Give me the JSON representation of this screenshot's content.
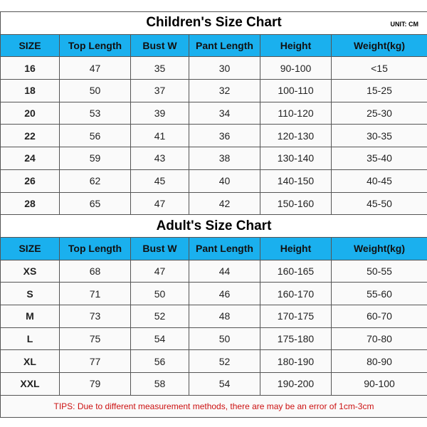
{
  "children": {
    "title": "Children's Size Chart",
    "unit": "UNIT: CM",
    "headers": [
      "SIZE",
      "Top Length",
      "Bust W",
      "Pant Length",
      "Height",
      "Weight(kg)"
    ],
    "rows": [
      [
        "16",
        "47",
        "35",
        "30",
        "90-100",
        "<15"
      ],
      [
        "18",
        "50",
        "37",
        "32",
        "100-110",
        "15-25"
      ],
      [
        "20",
        "53",
        "39",
        "34",
        "110-120",
        "25-30"
      ],
      [
        "22",
        "56",
        "41",
        "36",
        "120-130",
        "30-35"
      ],
      [
        "24",
        "59",
        "43",
        "38",
        "130-140",
        "35-40"
      ],
      [
        "26",
        "62",
        "45",
        "40",
        "140-150",
        "40-45"
      ],
      [
        "28",
        "65",
        "47",
        "42",
        "150-160",
        "45-50"
      ]
    ]
  },
  "adult": {
    "title": "Adult's Size Chart",
    "headers": [
      "SIZE",
      "Top Length",
      "Bust W",
      "Pant Length",
      "Height",
      "Weight(kg)"
    ],
    "rows": [
      [
        "XS",
        "68",
        "47",
        "44",
        "160-165",
        "50-55"
      ],
      [
        "S",
        "71",
        "50",
        "46",
        "160-170",
        "55-60"
      ],
      [
        "M",
        "73",
        "52",
        "48",
        "170-175",
        "60-70"
      ],
      [
        "L",
        "75",
        "54",
        "50",
        "175-180",
        "70-80"
      ],
      [
        "XL",
        "77",
        "56",
        "52",
        "180-190",
        "80-90"
      ],
      [
        "XXL",
        "79",
        "58",
        "54",
        "190-200",
        "90-100"
      ]
    ]
  },
  "tips": "TIPS: Due to different measurement methods, there are may be an error of 1cm-3cm",
  "colors": {
    "header_bg": "#1ab0ee",
    "tips_text": "#cc1111"
  }
}
